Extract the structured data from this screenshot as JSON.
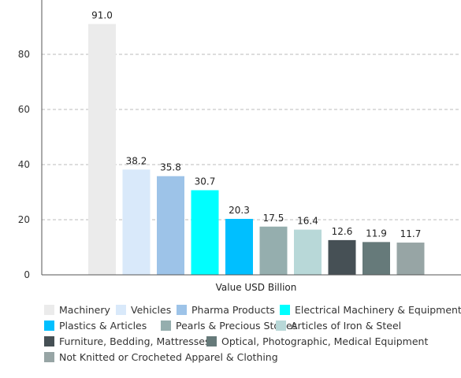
{
  "chart_data": {
    "type": "bar",
    "categories": [
      "Machinery",
      "Vehicles",
      "Pharma Products",
      "Electrical Machinery & Equipment",
      "Plastics & Articles",
      "Pearls & Precious Stones",
      "Articles of Iron & Steel",
      "Furniture, Bedding, Mattresses",
      "Optical, Photographic, Medical Equipment",
      "Not Knitted or Crocheted Apparel & Clothing"
    ],
    "values": [
      91.0,
      38.2,
      35.8,
      30.7,
      20.3,
      17.5,
      16.4,
      12.6,
      11.9,
      11.7
    ],
    "value_labels": [
      "91.0",
      "38.2",
      "35.8",
      "30.7",
      "20.3",
      "17.5",
      "16.4",
      "12.6",
      "11.9",
      "11.7"
    ],
    "colors": [
      "#ebebeb",
      "#d9e9fa",
      "#9dc3e8",
      "#00ffff",
      "#00bfff",
      "#95aeae",
      "#b8d8d8",
      "#465055",
      "#667a7a",
      "#97a5a5"
    ],
    "xlabel": "Value USD Billion",
    "ylabel": "",
    "ylim": [
      0,
      96
    ],
    "yticks": [
      0,
      20,
      40,
      60,
      80
    ],
    "grid": "horizontal dashed",
    "legend_position": "bottom"
  }
}
